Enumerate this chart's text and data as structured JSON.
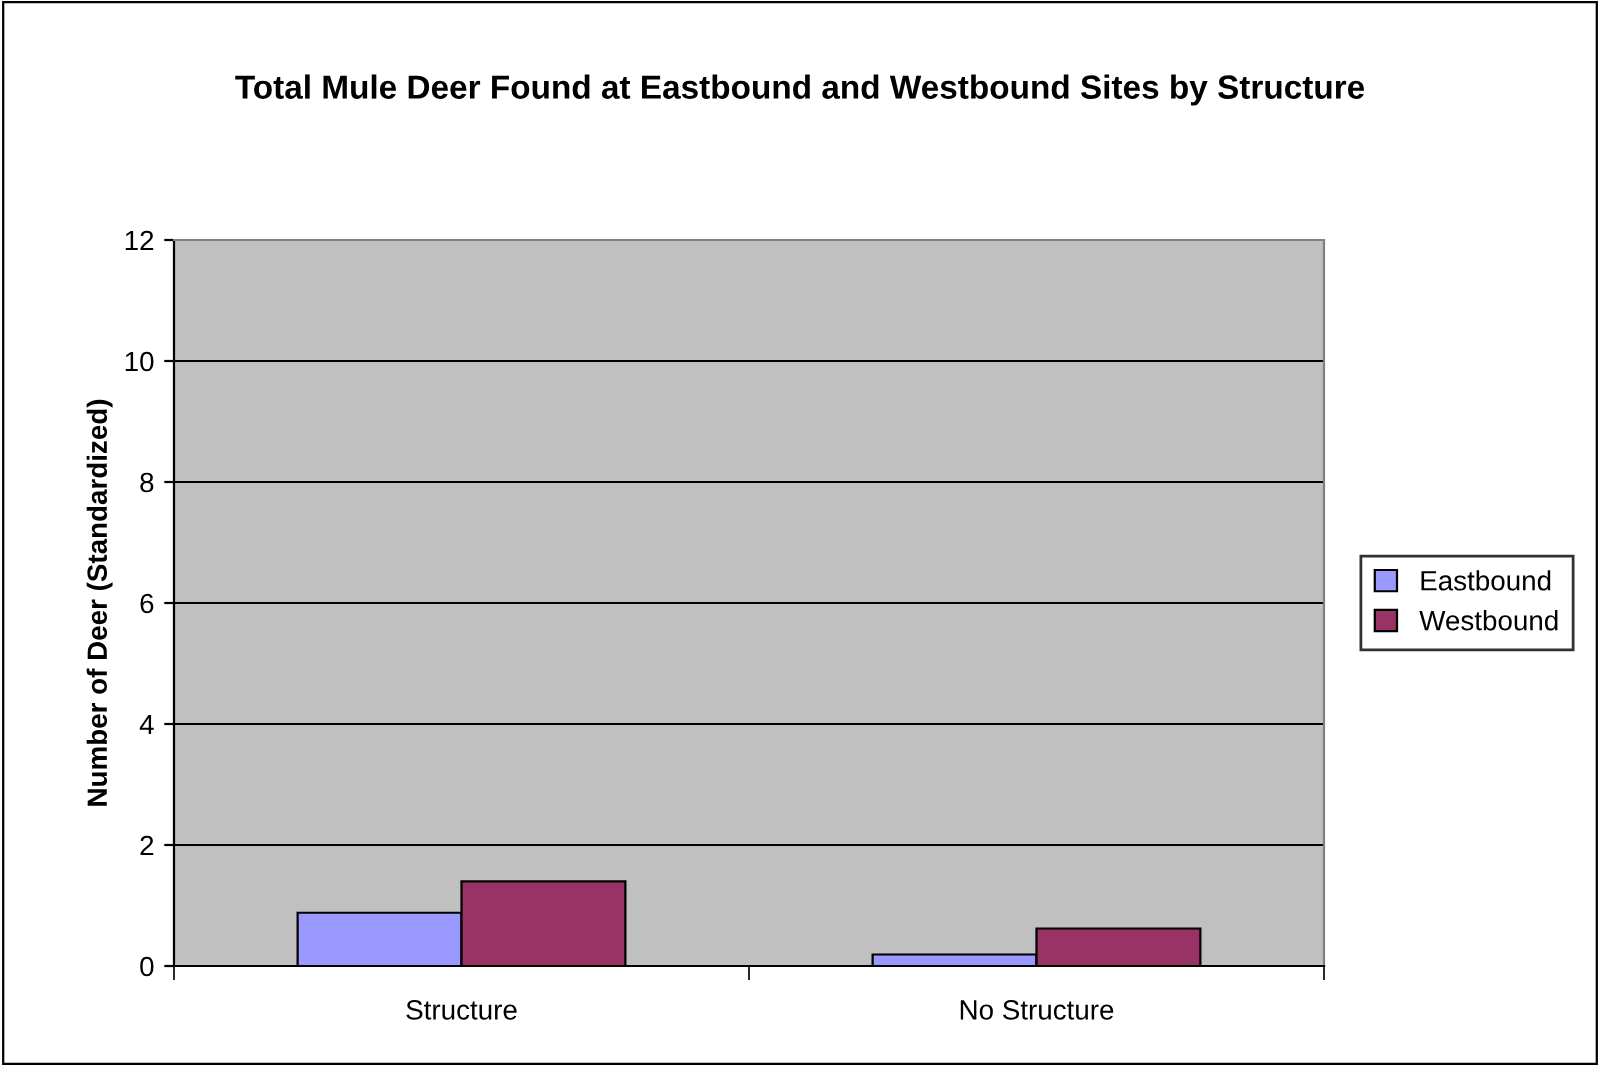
{
  "chart_data": {
    "type": "bar",
    "title": "Total Mule Deer Found at Eastbound and Westbound Sites by Structure",
    "ylabel": "Number of Deer (Standardized)",
    "categories": [
      "Structure",
      "No Structure"
    ],
    "series": [
      {
        "name": "Eastbound",
        "color": "#9999ff",
        "values": [
          0.88,
          0.19
        ]
      },
      {
        "name": "Westbound",
        "color": "#993366",
        "values": [
          1.4,
          0.62
        ]
      }
    ],
    "ylim": [
      0,
      12
    ],
    "yticks": [
      0,
      2,
      4,
      6,
      8,
      10,
      12
    ],
    "grid": "y",
    "legend": "right"
  }
}
